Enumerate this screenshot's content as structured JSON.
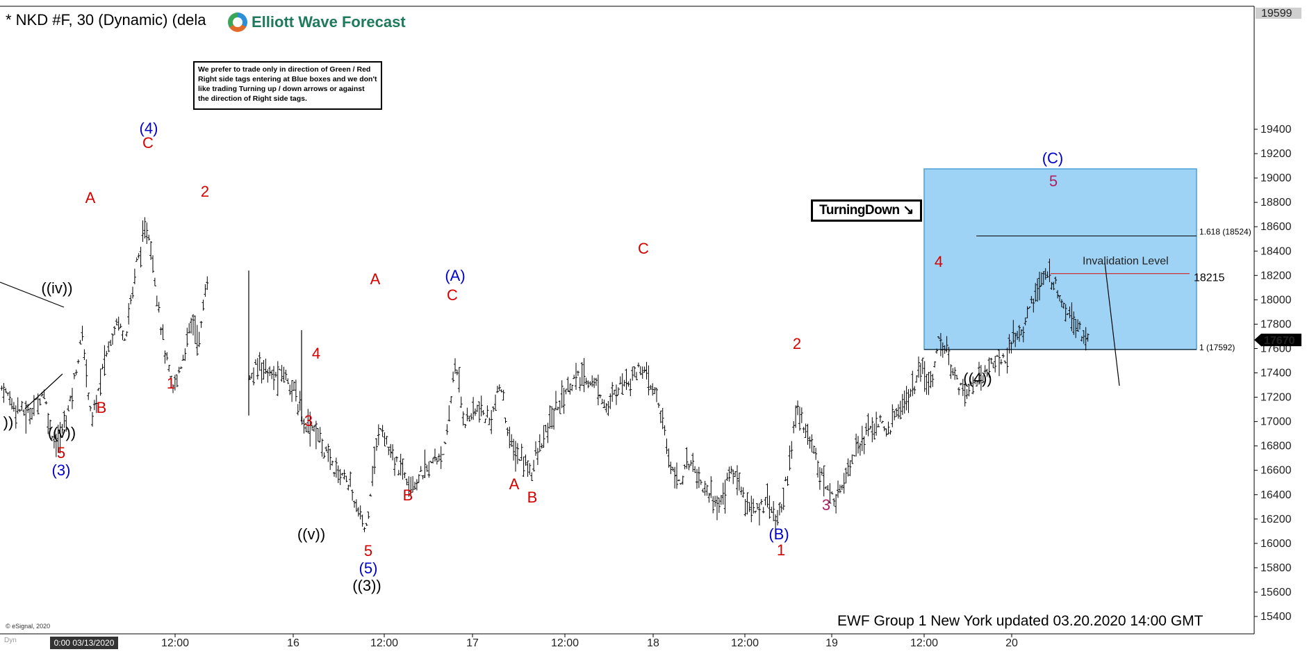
{
  "header": {
    "title": "* NKD #F, 30 (Dynamic) (dela",
    "logo_text": "Elliott Wave Forecast"
  },
  "note_text": "We prefer to trade only in direction of Green / Red Right side tags entering at Blue boxes and we don't like trading Turning up / down arrows or against the direction of Right side tags.",
  "turning_label": "TurningDown",
  "footer_text": "EWF Group 1 New York updated 03.20.2020 14:00 GMT",
  "esignal_text": "© eSignal, 2020",
  "dyn_text": "Dyn",
  "x_start_label": "0:00 03/13/2020",
  "colors": {
    "background": "#ffffff",
    "bars": "#000000",
    "blue_box": "#9fd3f5",
    "blue_box_border": "#4a9fd8",
    "wave_red": "#d40000",
    "wave_blue": "#0000cc",
    "wave_black": "#000000",
    "wave_purple": "#b02060",
    "invalidation_line": "#cc2222"
  },
  "chart_data": {
    "type": "ohlc",
    "y_axis": {
      "ticks": [
        15400,
        15600,
        15800,
        16000,
        16200,
        16400,
        16600,
        16800,
        17000,
        17200,
        17400,
        17600,
        17800,
        18000,
        18200,
        18400,
        18600,
        18800,
        19000,
        19200,
        19400
      ],
      "top_label": "19599",
      "last_price": "17670",
      "range": [
        15320,
        19600
      ]
    },
    "x_axis": {
      "labels": [
        "12:00",
        "16",
        "12:00",
        "17",
        "12:00",
        "18",
        "12:00",
        "19",
        "12:00",
        "20"
      ]
    },
    "blue_box": {
      "price_low": 17592,
      "price_high": 18524,
      "fib_high_label": "1.618 (18524)",
      "fib_low_label": "1 (17592)"
    },
    "invalidation": {
      "label": "Invalidation Level",
      "price": 18215,
      "price_label": "18215"
    },
    "wave_labels": [
      {
        "text": "((iv))",
        "color": "black"
      },
      {
        "text": "((v))",
        "color": "black"
      },
      {
        "text": "5",
        "color": "red"
      },
      {
        "text": "(3)",
        "color": "blue"
      },
      {
        "text": "))",
        "color": "black"
      },
      {
        "text": "A",
        "color": "red"
      },
      {
        "text": "B",
        "color": "red"
      },
      {
        "text": "(4)",
        "color": "blue"
      },
      {
        "text": "C",
        "color": "red"
      },
      {
        "text": "1",
        "color": "red"
      },
      {
        "text": "2",
        "color": "red"
      },
      {
        "text": "4",
        "color": "red"
      },
      {
        "text": "3",
        "color": "red"
      },
      {
        "text": "A",
        "color": "red"
      },
      {
        "text": "B",
        "color": "red"
      },
      {
        "text": "((v))",
        "color": "black"
      },
      {
        "text": "5",
        "color": "red"
      },
      {
        "text": "(5)",
        "color": "blue"
      },
      {
        "text": "((3))",
        "color": "black"
      },
      {
        "text": "(A)",
        "color": "blue"
      },
      {
        "text": "C",
        "color": "red"
      },
      {
        "text": "A",
        "color": "red"
      },
      {
        "text": "B",
        "color": "red"
      },
      {
        "text": "C",
        "color": "red"
      },
      {
        "text": "(B)",
        "color": "blue"
      },
      {
        "text": "1",
        "color": "red"
      },
      {
        "text": "2",
        "color": "red"
      },
      {
        "text": "3",
        "color": "purple"
      },
      {
        "text": "4",
        "color": "red"
      },
      {
        "text": "((4))",
        "color": "black"
      },
      {
        "text": "(C)",
        "color": "blue"
      },
      {
        "text": "5",
        "color": "purple"
      }
    ],
    "price_path": [
      [
        0,
        17300
      ],
      [
        18,
        17150
      ],
      [
        40,
        17050
      ],
      [
        62,
        17250
      ],
      [
        72,
        16950
      ],
      [
        82,
        16800
      ],
      [
        100,
        17150
      ],
      [
        118,
        17700
      ],
      [
        132,
        17000
      ],
      [
        150,
        17500
      ],
      [
        168,
        17850
      ],
      [
        180,
        17700
      ],
      [
        196,
        18300
      ],
      [
        212,
        18600
      ],
      [
        222,
        18200
      ],
      [
        236,
        17600
      ],
      [
        248,
        17250
      ],
      [
        262,
        17500
      ],
      [
        276,
        17850
      ],
      [
        286,
        17650
      ],
      [
        298,
        18200
      ],
      [
        356,
        17300
      ],
      [
        374,
        17500
      ],
      [
        392,
        17350
      ],
      [
        408,
        17400
      ],
      [
        420,
        17300
      ],
      [
        436,
        17000
      ],
      [
        452,
        16950
      ],
      [
        468,
        16750
      ],
      [
        482,
        16600
      ],
      [
        498,
        16550
      ],
      [
        512,
        16300
      ],
      [
        526,
        16100
      ],
      [
        536,
        16600
      ],
      [
        548,
        17000
      ],
      [
        562,
        16700
      ],
      [
        578,
        16600
      ],
      [
        596,
        16500
      ],
      [
        612,
        16600
      ],
      [
        628,
        16700
      ],
      [
        642,
        16800
      ],
      [
        654,
        17500
      ],
      [
        668,
        17000
      ],
      [
        686,
        17100
      ],
      [
        704,
        17000
      ],
      [
        720,
        17300
      ],
      [
        734,
        16800
      ],
      [
        748,
        16700
      ],
      [
        764,
        16600
      ],
      [
        778,
        16800
      ],
      [
        792,
        17000
      ],
      [
        808,
        17200
      ],
      [
        826,
        17350
      ],
      [
        842,
        17350
      ],
      [
        858,
        17300
      ],
      [
        874,
        17100
      ],
      [
        890,
        17300
      ],
      [
        904,
        17350
      ],
      [
        922,
        17450
      ],
      [
        934,
        17300
      ],
      [
        946,
        17200
      ],
      [
        962,
        16700
      ],
      [
        978,
        16500
      ],
      [
        994,
        16700
      ],
      [
        1008,
        16500
      ],
      [
        1022,
        16400
      ],
      [
        1036,
        16300
      ],
      [
        1050,
        16600
      ],
      [
        1064,
        16500
      ],
      [
        1076,
        16300
      ],
      [
        1090,
        16250
      ],
      [
        1104,
        16400
      ],
      [
        1118,
        16150
      ],
      [
        1134,
        16600
      ],
      [
        1146,
        17100
      ],
      [
        1162,
        16900
      ],
      [
        1176,
        16700
      ],
      [
        1188,
        16450
      ],
      [
        1202,
        16350
      ],
      [
        1218,
        16600
      ],
      [
        1232,
        16800
      ],
      [
        1246,
        16900
      ],
      [
        1262,
        17000
      ],
      [
        1276,
        16900
      ],
      [
        1292,
        17100
      ],
      [
        1308,
        17200
      ],
      [
        1324,
        17400
      ],
      [
        1338,
        17300
      ],
      [
        1352,
        17700
      ],
      [
        1366,
        17500
      ],
      [
        1380,
        17300
      ],
      [
        1394,
        17250
      ],
      [
        1408,
        17350
      ],
      [
        1422,
        17450
      ],
      [
        1436,
        17500
      ],
      [
        1450,
        17550
      ],
      [
        1462,
        17700
      ],
      [
        1474,
        17800
      ],
      [
        1486,
        18000
      ],
      [
        1498,
        18150
      ],
      [
        1510,
        18200
      ],
      [
        1520,
        18100
      ],
      [
        1532,
        17950
      ],
      [
        1546,
        17850
      ],
      [
        1560,
        17700
      ],
      [
        1568,
        17650
      ]
    ]
  }
}
